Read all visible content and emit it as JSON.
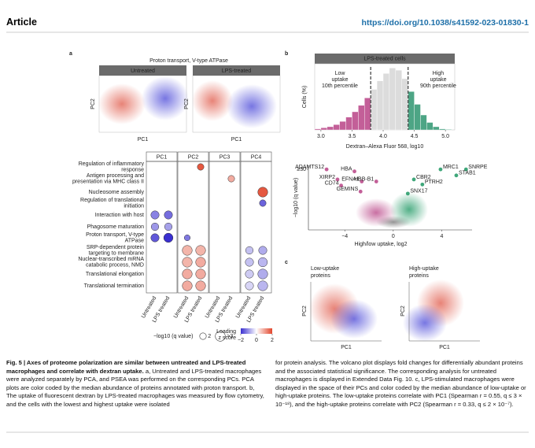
{
  "header": {
    "label": "Article",
    "doi": "https://doi.org/10.1038/s41592-023-01830-1"
  },
  "panel_a": {
    "letter": "a",
    "title": "Proton transport, V-type ATPase",
    "pca_titles": [
      "Untreated",
      "LPS-treated"
    ],
    "x_label": "PC1",
    "y_label": "PC2",
    "dotplot": {
      "columns": [
        "PC1",
        "PC2",
        "PC3",
        "PC4"
      ],
      "conditions": [
        "Untreated",
        "LPS treated"
      ],
      "rows": [
        [
          "Regulation of inflammatory",
          "response"
        ],
        [
          "Antigen processing and",
          "presentation via MHC class II"
        ],
        [
          "Nucleosome assembly"
        ],
        [
          "Regulation of translational",
          "initiation"
        ],
        [
          "Interaction with host"
        ],
        [
          "Phagosome maturation"
        ],
        [
          "Proton transport, V-type",
          "ATPase"
        ],
        [
          "SRP-dependent protein",
          "targeting to membrane"
        ],
        [
          "Nuclear-transcribed mRNA",
          "catabolic process, NMD"
        ],
        [
          "Translational elongation"
        ],
        [
          "Translational termination"
        ]
      ],
      "z": [
        [
          null,
          null,
          null,
          1.8,
          null,
          null,
          null,
          null
        ],
        [
          null,
          null,
          null,
          null,
          null,
          0.9,
          null,
          null
        ],
        [
          null,
          null,
          null,
          null,
          null,
          null,
          null,
          1.8
        ],
        [
          null,
          null,
          null,
          null,
          null,
          null,
          null,
          -1.5
        ],
        [
          -1.2,
          -1.4,
          null,
          null,
          null,
          null,
          null,
          null
        ],
        [
          -1.0,
          -0.9,
          null,
          null,
          null,
          null,
          null,
          null
        ],
        [
          -1.6,
          -2.0,
          -1.3,
          null,
          null,
          null,
          null,
          null
        ],
        [
          null,
          null,
          0.8,
          0.8,
          null,
          null,
          -0.6,
          -0.8
        ],
        [
          null,
          null,
          0.8,
          0.9,
          null,
          null,
          -0.6,
          -0.7
        ],
        [
          null,
          null,
          0.9,
          0.9,
          null,
          null,
          -0.5,
          -0.8
        ],
        [
          null,
          null,
          0.9,
          0.9,
          null,
          null,
          -0.4,
          -0.7
        ]
      ],
      "q": [
        [
          null,
          null,
          null,
          2,
          null,
          null,
          null,
          null
        ],
        [
          null,
          null,
          null,
          null,
          null,
          2,
          null,
          null
        ],
        [
          null,
          null,
          null,
          null,
          null,
          null,
          null,
          3
        ],
        [
          null,
          null,
          null,
          null,
          null,
          null,
          null,
          2
        ],
        [
          2.5,
          2.5,
          null,
          null,
          null,
          null,
          null,
          null
        ],
        [
          2.3,
          2.3,
          null,
          null,
          null,
          null,
          null,
          null
        ],
        [
          2.5,
          2.8,
          1.8,
          null,
          null,
          null,
          null,
          null
        ],
        [
          null,
          null,
          3,
          3,
          null,
          null,
          2.3,
          2.5
        ],
        [
          null,
          null,
          3,
          3,
          null,
          null,
          2.5,
          2.8
        ],
        [
          null,
          null,
          3,
          3,
          null,
          null,
          2.5,
          3
        ],
        [
          null,
          null,
          3,
          3,
          null,
          null,
          2.5,
          3
        ]
      ],
      "size_title": "−log10 (q value)",
      "size_ticks": [
        2,
        {
          "value": 3,
          "label": ">3"
        }
      ],
      "color_title": [
        "Loading",
        "z score"
      ],
      "color_lim": [
        -2,
        2
      ],
      "color_ticks": [
        {
          "value": -2,
          "label": "−2"
        },
        0,
        2
      ],
      "colors": [
        "#3a2fd0",
        "#ffffff",
        "#e2452b"
      ]
    }
  },
  "panel_b": {
    "letter": "b",
    "histogram": {
      "type": "histogram",
      "title": "LPS-treated cells",
      "y_label": "Cells (%)",
      "x_label": "Dextran–Alexa Fluor 568, log10",
      "bins": [
        2.9,
        3.0,
        3.1,
        3.2,
        3.3,
        3.4,
        3.5,
        3.6,
        3.7,
        3.8,
        3.9,
        4.0,
        4.1,
        4.2,
        4.3,
        4.4,
        4.5,
        4.6,
        4.7,
        4.8,
        4.9,
        5.0,
        5.1
      ],
      "values": [
        0.1,
        0.2,
        0.3,
        0.5,
        0.8,
        1.2,
        1.7,
        2.3,
        3.0,
        3.8,
        4.6,
        5.3,
        5.8,
        5.6,
        4.8,
        3.6,
        2.4,
        1.4,
        0.7,
        0.3,
        0.1,
        0.05
      ],
      "xlim": [
        2.9,
        5.15
      ],
      "ylim": [
        0,
        6.2
      ],
      "xticks": [
        {
          "value": 3,
          "label": "3.0"
        },
        3.5,
        {
          "value": 4,
          "label": "4.0"
        },
        4.5,
        {
          "value": 5,
          "label": "5.0"
        }
      ],
      "thresholds": [
        3.8,
        4.4
      ],
      "low_label": [
        "Low",
        "uptake",
        "10th percentile"
      ],
      "high_label": [
        "High",
        "uptake",
        "90th percentile"
      ],
      "colors": [
        "#c35f98",
        "#dcdcdc",
        "#4da585"
      ]
    },
    "volcano": {
      "type": "scatter",
      "x_label": "High/low uptake, log2",
      "y_label": "−log10 (q value)",
      "xlim": [
        -7,
        6.5
      ],
      "ylim": [
        0,
        32
      ],
      "xticks": [
        {
          "value": -4,
          "label": "−4"
        },
        0,
        4
      ],
      "yticks": [
        {
          "value": 30,
          "label": "≥30"
        }
      ],
      "genes": [
        "ADAMTS12",
        "HBA",
        "XIRP2",
        "CD74",
        "EFNA1",
        "GEMINS",
        "HBB-B1",
        "CBR2",
        "MRC1",
        "SNRPE",
        "STAB1",
        "PTRH2",
        "SNX17"
      ],
      "x": [
        -5.5,
        -3.2,
        -4.6,
        -4.3,
        -2.6,
        -2.7,
        -1.4,
        1.7,
        3.9,
        6.0,
        5.2,
        2.4,
        1.2
      ],
      "y": [
        30,
        29,
        25,
        22,
        24,
        19,
        24,
        25,
        30,
        30,
        27,
        22.5,
        18
      ],
      "colors": [
        "#c35f98",
        "#3fa77a"
      ]
    }
  },
  "panel_c": {
    "letter": "c",
    "titles": [
      [
        "Low-uptake",
        "proteins"
      ],
      [
        "High-uptake",
        "proteins"
      ]
    ],
    "title_colors": [
      "#c35f98",
      "#3fa77a"
    ],
    "x_label": "PC1",
    "y_label": "PC2"
  },
  "caption": {
    "title": "Fig. 5 | Axes of proteome polarization are similar between untreated and LPS-treated macrophages and correlate with dextran uptake.",
    "left": "a, Untreated and LPS-treated macrophages were analyzed separately by PCA, and PSEA was performed on the corresponding PCs. PCA plots are color coded by the median abundance of proteins annotated with proton transport. b, The uptake of fluorescent dextran by LPS-treated macrophages was measured by flow cytometry, and the cells with the lowest and highest uptake were isolated",
    "right": "for protein analysis. The volcano plot displays fold changes for differentially abundant proteins and the associated statistical significance. The corresponding analysis for untreated macrophages is displayed in Extended Data Fig. 10. c, LPS-stimulated macrophages were displayed in the space of their PCs and color coded by the median abundance of low-uptake or high-uptake proteins. The low-uptake proteins correlate with PC1 (Spearman r = 0.55, q ≤ 3 × 10⁻¹⁸), and the high-uptake proteins correlate with PC2 (Spearman r = 0.33, q ≤ 2 × 10⁻⁷)."
  }
}
